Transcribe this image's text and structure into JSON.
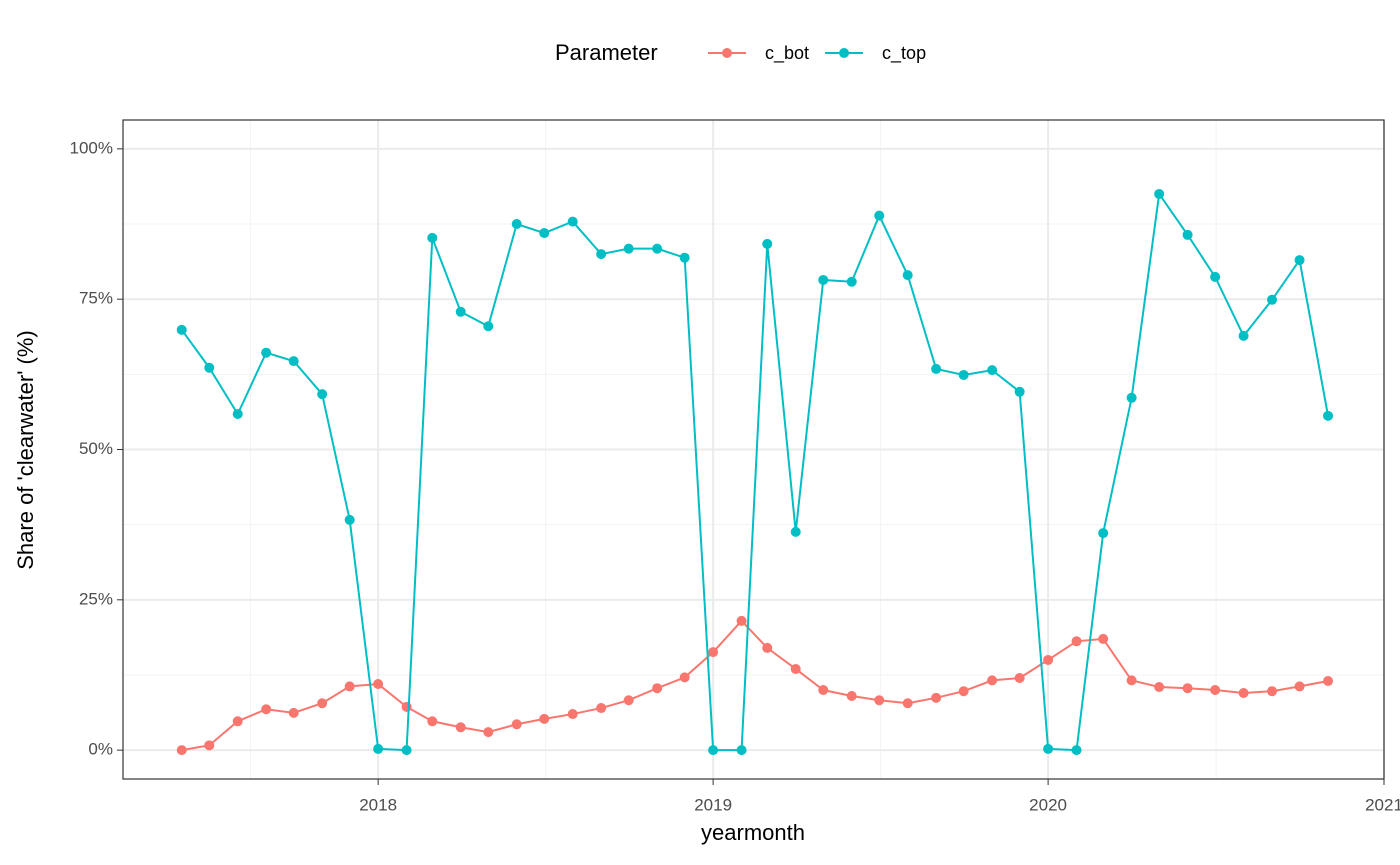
{
  "chart_data": {
    "type": "line",
    "y_label": "Share of 'clearwater' (%)",
    "x_label": "yearmonth",
    "legend_title": "Parameter",
    "legend_position": "top",
    "grid": true,
    "x": [
      "2017-06",
      "2017-07",
      "2017-08",
      "2017-09",
      "2017-10",
      "2017-11",
      "2017-12",
      "2018-01",
      "2018-02",
      "2018-03",
      "2018-04",
      "2018-05",
      "2018-06",
      "2018-07",
      "2018-08",
      "2018-09",
      "2018-10",
      "2018-11",
      "2018-12",
      "2019-01",
      "2019-02",
      "2019-03",
      "2019-04",
      "2019-05",
      "2019-06",
      "2019-07",
      "2019-08",
      "2019-09",
      "2019-10",
      "2019-11",
      "2019-12",
      "2020-01",
      "2020-02",
      "2020-03",
      "2020-04",
      "2020-05",
      "2020-06",
      "2020-07",
      "2020-08",
      "2020-09",
      "2020-10",
      "2020-11"
    ],
    "series": [
      {
        "name": "c_bot",
        "color": "#F8766D",
        "values": [
          0,
          0.8,
          4.8,
          6.8,
          6.2,
          7.8,
          10.6,
          11.0,
          7.2,
          4.8,
          3.8,
          3.0,
          4.3,
          5.2,
          6.0,
          7.0,
          8.3,
          10.3,
          12.1,
          16.3,
          21.5,
          17.0,
          13.5,
          10.0,
          9.0,
          8.3,
          7.8,
          8.7,
          9.8,
          11.6,
          12.0,
          15.0,
          18.1,
          18.5,
          11.6,
          10.5,
          10.3,
          10.0,
          9.5,
          9.8,
          10.6,
          11.5
        ]
      },
      {
        "name": "c_top",
        "color": "#00BFC4",
        "values": [
          69.9,
          63.6,
          55.9,
          66.1,
          64.7,
          59.2,
          38.3,
          0.2,
          0,
          85.2,
          72.9,
          70.5,
          87.5,
          86.0,
          87.9,
          82.5,
          83.4,
          83.4,
          81.9,
          0,
          0,
          84.2,
          36.3,
          78.2,
          77.9,
          88.9,
          79.0,
          63.4,
          62.4,
          63.2,
          59.6,
          0.2,
          0,
          36.1,
          58.6,
          92.5,
          85.7,
          78.7,
          68.9,
          74.9,
          81.5,
          55.6
        ]
      }
    ],
    "xlim": [
      "2017-03-29",
      "2021-01-01"
    ],
    "xticks": [
      {
        "value": "2018-01-01",
        "label": "2018"
      },
      {
        "value": "2019-01-01",
        "label": "2019"
      },
      {
        "value": "2020-01-01",
        "label": "2020"
      },
      {
        "value": "2021-01-01",
        "label": "2021"
      }
    ],
    "ylim": [
      -4.8,
      104.8
    ],
    "yticks": [
      {
        "value": 0,
        "label": "0%"
      },
      {
        "value": 25,
        "label": "25%"
      },
      {
        "value": 50,
        "label": "50%"
      },
      {
        "value": 75,
        "label": "75%"
      },
      {
        "value": 100,
        "label": "100%"
      }
    ]
  }
}
